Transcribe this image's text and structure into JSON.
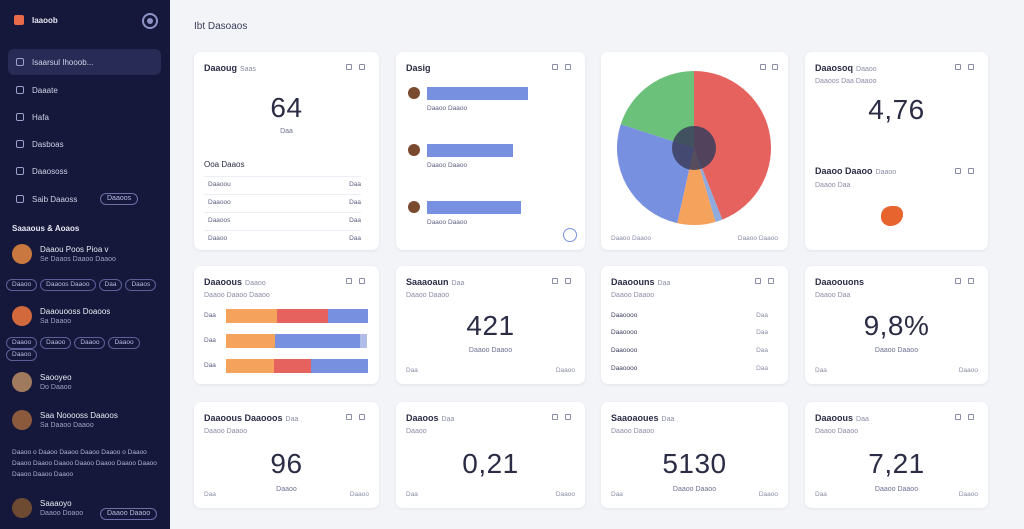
{
  "colors": {
    "sidebar": "#15183a",
    "blue": "#7890e0",
    "red": "#e5625e",
    "green": "#6cc17a",
    "orange": "#f5a25c",
    "accent": "#e86a4a"
  },
  "sidebar": {
    "brand": "Iaaoob",
    "items": [
      {
        "label": "Isaarsul Ihooob...",
        "icon": "dashboard-icon"
      },
      {
        "label": "Daaate",
        "icon": "folder-icon"
      },
      {
        "label": "Hafa",
        "icon": "file-icon"
      },
      {
        "label": "Dasboas",
        "icon": "chart-icon"
      },
      {
        "label": "Daaososs",
        "icon": "grid-icon"
      },
      {
        "label": "Saib Daaoss",
        "icon": "list-icon",
        "pill": "Daaoos"
      }
    ],
    "section_title": "Saaaous & Aoaos",
    "users": [
      {
        "name": "Daaou Poos Pioa v",
        "sub": "Se Daaos Daaoo Daaoo"
      },
      {
        "name": "Daaouooss Doaoos",
        "sub": "Sa Daaoo"
      },
      {
        "name": "Saooyeo",
        "sub": "Do Daaoo"
      },
      {
        "name": "Saa Nooooss Daaoos",
        "sub": "Sa Daaoo Daaoo"
      },
      {
        "name": "Saaaoyo",
        "sub": "Daaoo Doaoo"
      }
    ],
    "tags_a": [
      "Daaoo",
      "Daaoos Daaoo",
      "Daa",
      "Daaos"
    ],
    "tags_b": [
      "Daaoo",
      "Daaoo",
      "Daaoo",
      "Daaoo",
      "Daaoo"
    ],
    "note": "Daaoo o Daaoo Daaoo Daaoo Daaoo o Daaoo Daaoo Daaoo Daaoo Daaoo Daaoo Daaoo Daaoo Daaoo Daaoo Daaoo",
    "bottom_pill": "Daaoo Daaoo"
  },
  "page_title": "Ibt Dasoaos",
  "cards": {
    "c1": {
      "title": "Daaoug",
      "muted": "Saas",
      "value": "64",
      "sub": "Daa",
      "section": "Ooa Daaos",
      "rows": [
        [
          "Daaoou",
          "Daa"
        ],
        [
          "Daaooo",
          "Daa"
        ],
        [
          "Daaoos",
          "Daa"
        ],
        [
          "Daaoo",
          "Daa"
        ]
      ]
    },
    "c2": {
      "title": "Dasig",
      "bars": [
        {
          "label": "Daaoo Daaoo",
          "value": 0.78
        },
        {
          "label": "Daaoo Daaoo",
          "value": 0.66
        },
        {
          "label": "Daaoo Daaoo",
          "value": 0.72
        }
      ]
    },
    "c3": {
      "foot_l": "Daaoo Daaoo",
      "foot_r": "Daaoo Daaoo",
      "pie": [
        {
          "label": "Red",
          "value": 44,
          "color": "#e5625e"
        },
        {
          "label": "Small",
          "value": 1.5,
          "color": "#8faadc"
        },
        {
          "label": "Orange",
          "value": 8,
          "color": "#f5a25c"
        },
        {
          "label": "Blue",
          "value": 26.5,
          "color": "#7890e0"
        },
        {
          "label": "Green",
          "value": 20,
          "color": "#6cc17a"
        }
      ]
    },
    "c4": {
      "title": "Daaosoq",
      "muted": "Daaoo",
      "sub": "Daaoos Daa Daaoo",
      "value": "4,76",
      "section": "Daaoo Daaoo",
      "muted2": "Daaoo",
      "sub2": "Daaoo Daa"
    },
    "c5": {
      "title": "Daaoous",
      "muted": "Daaoo",
      "sub": "Daaoo Daaoo Daaoo",
      "rows": [
        {
          "label": "Daa",
          "segs": [
            0.36,
            0.36,
            0.28
          ]
        },
        {
          "label": "Daa",
          "segs": [
            0.2,
            0.15,
            0.6,
            0.05
          ]
        },
        {
          "label": "Daa",
          "segs": [
            0.34,
            0.26,
            0.4
          ]
        }
      ]
    },
    "c6": {
      "title": "Saaaoaun",
      "muted": "Daa",
      "sub": "Daaoo Daaoo",
      "value": "421",
      "sub2": "Daaoo Daaoo",
      "foot_l": "Daa",
      "foot_r": "Daaoo"
    },
    "c7": {
      "title": "Daaoouns",
      "muted": "Daa",
      "sub": "Daaoo Daaoo",
      "rows": [
        [
          "Daaoooo",
          "Daa"
        ],
        [
          "Daaoooo",
          "Daa"
        ],
        [
          "Daaoooo",
          "Daa"
        ],
        [
          "Daaoooo",
          "Daa"
        ]
      ]
    },
    "c8": {
      "title": "Daaoouons",
      "sub": "Daaoo Daa",
      "value": "9,8%",
      "sub2": "Daaoo Daaoo",
      "foot_l": "Daa",
      "foot_r": "Daaoo"
    },
    "c9": {
      "title": "Daaoous Daaooos",
      "muted": "Daa",
      "sub": "Daaoo Daaoo",
      "value": "96",
      "sub2": "Daaoo",
      "foot_l": "Daa",
      "foot_r": "Daaoo"
    },
    "c10": {
      "title": "Daaoos",
      "muted": "Daa",
      "sub": "Daaoo",
      "value": "0,21",
      "foot_l": "Daa",
      "foot_r": "Daaoo"
    },
    "c11": {
      "title": "Saaoaoues",
      "muted": "Daa",
      "sub": "Daaoo Daaoo",
      "value": "5130",
      "sub2": "Daaoo Daaoo",
      "foot_l": "Daa",
      "foot_r": "Daaoo"
    },
    "c12": {
      "title": "Daaoous",
      "muted": "Daa",
      "sub": "Daaoo Daaoo",
      "value": "7,21",
      "sub2": "Daaoo Daaoo",
      "foot_l": "Daa",
      "foot_r": "Daaoo"
    }
  }
}
